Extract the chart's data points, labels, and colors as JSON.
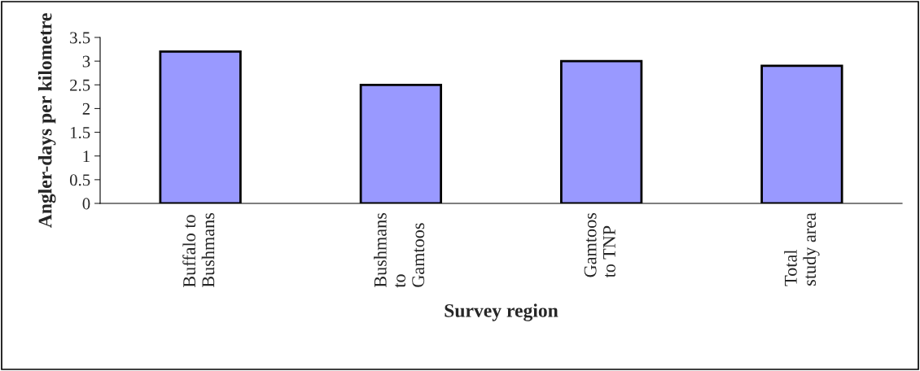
{
  "chart_data": {
    "type": "bar",
    "xlabel": "Survey region",
    "ylabel": "Angler-days per kilometre",
    "categories": [
      "Buffalo to\nBushmans",
      "Bushmans\nto\nGamtoos",
      "Gamtoos\nto TNP",
      "Total\nstudy area"
    ],
    "values": [
      3.2,
      2.5,
      3.0,
      2.9
    ],
    "color": "#9999ff",
    "ylim": [
      0,
      3.5
    ],
    "yticks": [
      0,
      0.5,
      1,
      1.5,
      2,
      2.5,
      3,
      3.5
    ],
    "grid": false,
    "legend": false
  }
}
